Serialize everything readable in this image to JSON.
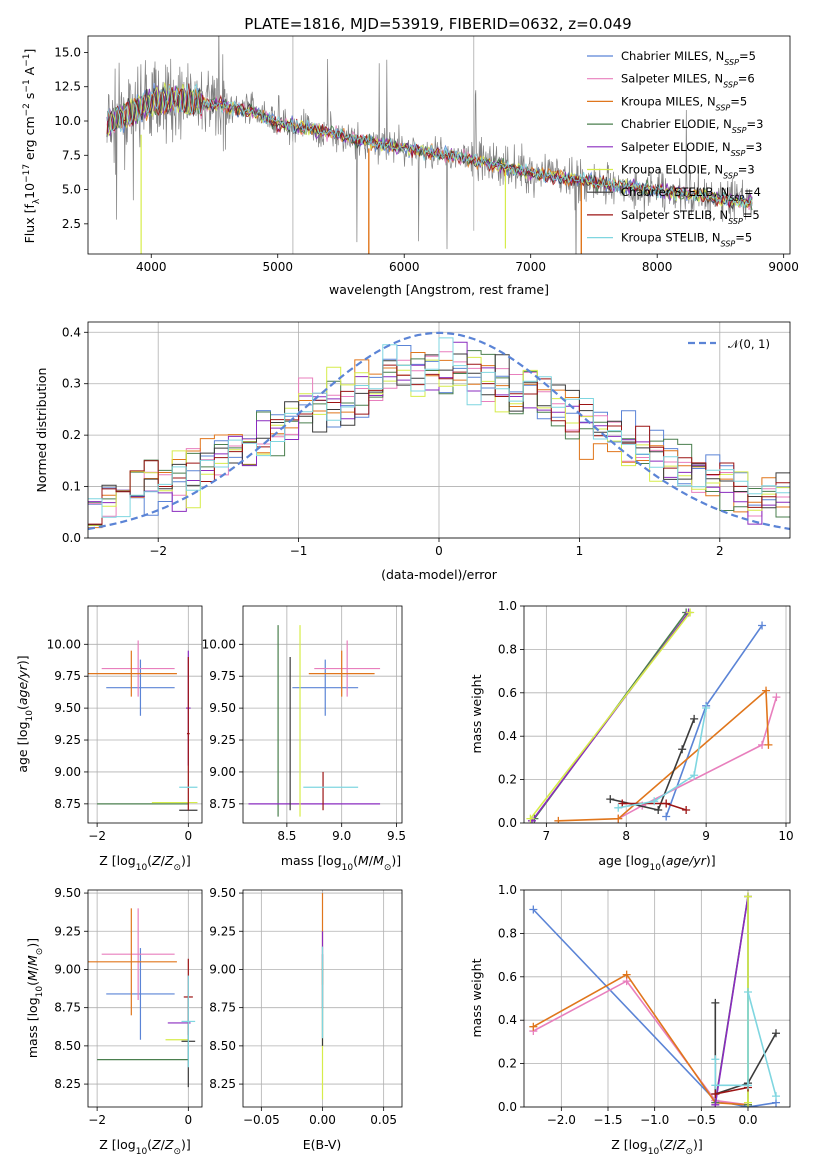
{
  "title": "PLATE=1816, MJD=53919, FIBERID=0632, z=0.049",
  "colors": {
    "Chabrier MILES": "#5b84d6",
    "Salpeter MILES": "#e87fbd",
    "Kroupa MILES": "#e0761c",
    "Chabrier ELODIE": "#4a7f4e",
    "Salpeter ELODIE": "#8a2bbf",
    "Kroupa ELODIE": "#d6ec4a",
    "Chabrier STELIB": "#3b3b3b",
    "Salpeter STELIB": "#9c1414",
    "Kroupa STELIB": "#7fd6e0",
    "data": "#808080",
    "normal": "#5b84d6"
  },
  "chart_data": [
    {
      "id": "spectrum",
      "type": "line",
      "xlabel": "wavelength [Angstrom, rest frame]",
      "ylabel": "Flux [f_λ 10^-17 erg cm^-2 s^-1 A^-1]",
      "xlim": [
        3500,
        9050
      ],
      "ylim": [
        0.3,
        16.2
      ],
      "xticks": [
        "4000",
        "5000",
        "6000",
        "7000",
        "8000",
        "9000"
      ],
      "yticks": [
        "2.5",
        "5.0",
        "7.5",
        "10.0",
        "12.5",
        "15.0"
      ],
      "legend_position": "upper right",
      "legend": [
        {
          "name": "Chabrier MILES",
          "n": "5"
        },
        {
          "name": "Salpeter MILES",
          "n": "6"
        },
        {
          "name": "Kroupa MILES",
          "n": "5"
        },
        {
          "name": "Chabrier ELODIE",
          "n": "3"
        },
        {
          "name": "Salpeter ELODIE",
          "n": "3"
        },
        {
          "name": "Kroupa ELODIE",
          "n": "3"
        },
        {
          "name": "Chabrier STELIB",
          "n": "4"
        },
        {
          "name": "Salpeter STELIB",
          "n": "5"
        },
        {
          "name": "Kroupa STELIB",
          "n": "5"
        }
      ],
      "continuum": {
        "x": [
          3650,
          3800,
          4000,
          4200,
          4500,
          4800,
          5000,
          5300,
          5600,
          6000,
          6300,
          6600,
          7000,
          7300,
          7600,
          8000,
          8300,
          8600,
          8750
        ],
        "y": [
          9.8,
          10.4,
          11.4,
          11.6,
          11.2,
          10.7,
          9.8,
          9.4,
          8.7,
          8.0,
          7.6,
          7.1,
          6.2,
          5.8,
          5.4,
          4.9,
          4.6,
          4.2,
          4.0
        ]
      }
    },
    {
      "id": "residuals",
      "type": "line",
      "xlabel": "(data-model)/error",
      "ylabel": "Normed distribution",
      "xlim": [
        -2.5,
        2.5
      ],
      "ylim": [
        0,
        0.42
      ],
      "xticks": [
        "−2",
        "−1",
        "0",
        "1",
        "2"
      ],
      "yticks": [
        "0.0",
        "0.1",
        "0.2",
        "0.3",
        "0.4"
      ],
      "legend": "𝒩(0, 1)",
      "bin_width": 0.1
    },
    {
      "id": "age_vs_Z",
      "type": "scatter",
      "xlabel": "Z [log10(Z/Z⊙)]",
      "ylabel": "age [log10(age/yr)]",
      "xlim": [
        -2.2,
        0.3
      ],
      "ylim": [
        8.6,
        10.3
      ],
      "xticks": [
        "−2",
        "0"
      ],
      "yticks": [
        "8.75",
        "9.00",
        "9.25",
        "9.50",
        "9.75",
        "10.00"
      ],
      "points": [
        {
          "model": "Chabrier MILES",
          "x": -1.05,
          "y": 9.66,
          "xe": 0.75,
          "ye": 0.22
        },
        {
          "model": "Salpeter MILES",
          "x": -1.1,
          "y": 9.81,
          "xe": 0.8,
          "ye": 0.22
        },
        {
          "model": "Kroupa MILES",
          "x": -1.25,
          "y": 9.77,
          "xe": 1.0,
          "ye": 0.18
        },
        {
          "model": "Chabrier ELODIE",
          "x": -1.0,
          "y": 8.75,
          "xe": 1.0,
          "ye": 0
        },
        {
          "model": "Salpeter ELODIE",
          "x": 0.0,
          "y": 9.5,
          "xe": 0.05,
          "ye": 0.45
        },
        {
          "model": "Kroupa ELODIE",
          "x": -0.3,
          "y": 8.76,
          "xe": 0.5,
          "ye": 0
        },
        {
          "model": "Chabrier STELIB",
          "x": 0.0,
          "y": 8.7,
          "xe": 0.2,
          "ye": 0
        },
        {
          "model": "Salpeter STELIB",
          "x": 0.0,
          "y": 9.3,
          "xe": 0.03,
          "ye": 0.6
        },
        {
          "model": "Kroupa STELIB",
          "x": 0.0,
          "y": 8.88,
          "xe": 0.2,
          "ye": 0
        }
      ]
    },
    {
      "id": "age_vs_mass",
      "type": "scatter",
      "xlabel": "mass [log10(M/M⊙)]",
      "xlim": [
        8.1,
        9.55
      ],
      "ylim": [
        8.6,
        10.3
      ],
      "xticks": [
        "8.5",
        "9.0",
        "9.5"
      ],
      "yticks": [
        "8.75",
        "9.00",
        "9.25",
        "9.50",
        "9.75",
        "10.00"
      ],
      "points": [
        {
          "model": "Chabrier MILES",
          "x": 8.85,
          "y": 9.66,
          "xe": 0.3,
          "ye": 0.22
        },
        {
          "model": "Salpeter MILES",
          "x": 9.05,
          "y": 9.81,
          "xe": 0.3,
          "ye": 0.22
        },
        {
          "model": "Kroupa MILES",
          "x": 9.0,
          "y": 9.77,
          "xe": 0.3,
          "ye": 0.18
        },
        {
          "model": "Chabrier ELODIE",
          "x": 8.42,
          "y": 9.4,
          "xe": 0.0,
          "ye": 0.75
        },
        {
          "model": "Salpeter ELODIE",
          "x": 8.75,
          "y": 8.75,
          "xe": 0.6,
          "ye": 0
        },
        {
          "model": "Kroupa ELODIE",
          "x": 8.62,
          "y": 9.4,
          "xe": 0.0,
          "ye": 0.75
        },
        {
          "model": "Chabrier STELIB",
          "x": 8.53,
          "y": 9.3,
          "xe": 0.0,
          "ye": 0.6
        },
        {
          "model": "Salpeter STELIB",
          "x": 8.83,
          "y": 8.85,
          "xe": 0.0,
          "ye": 0.15
        },
        {
          "model": "Kroupa STELIB",
          "x": 8.9,
          "y": 8.88,
          "xe": 0.25,
          "ye": 0
        }
      ]
    },
    {
      "id": "weight_vs_age",
      "type": "line",
      "xlabel": "age [log10(age/yr)]",
      "ylabel": "mass weight",
      "xlim": [
        6.72,
        10.05
      ],
      "ylim": [
        0,
        1
      ],
      "xticks": [
        "7",
        "8",
        "9",
        "10"
      ],
      "yticks": [
        "0.0",
        "0.2",
        "0.4",
        "0.6",
        "0.8",
        "1.0"
      ],
      "series": [
        {
          "model": "Chabrier MILES",
          "x": [
            8.5,
            9.0,
            9.7
          ],
          "y": [
            0.03,
            0.54,
            0.91
          ]
        },
        {
          "model": "Salpeter MILES",
          "x": [
            7.9,
            8.2,
            9.7,
            9.88
          ],
          "y": [
            0.02,
            0.08,
            0.36,
            0.58
          ]
        },
        {
          "model": "Kroupa MILES",
          "x": [
            7.15,
            7.9,
            9.75,
            9.78
          ],
          "y": [
            0.01,
            0.02,
            0.61,
            0.36
          ]
        },
        {
          "model": "Chabrier ELODIE",
          "x": [
            6.85,
            8.75
          ],
          "y": [
            0.02,
            0.97
          ]
        },
        {
          "model": "Salpeter ELODIE",
          "x": [
            6.82,
            8.78
          ],
          "y": [
            0.01,
            0.97
          ]
        },
        {
          "model": "Kroupa ELODIE",
          "x": [
            6.8,
            8.8
          ],
          "y": [
            0.02,
            0.97
          ]
        },
        {
          "model": "Chabrier STELIB",
          "x": [
            7.8,
            8.4,
            8.7,
            8.85
          ],
          "y": [
            0.11,
            0.06,
            0.34,
            0.48
          ]
        },
        {
          "model": "Salpeter STELIB",
          "x": [
            7.95,
            8.5,
            8.75
          ],
          "y": [
            0.09,
            0.09,
            0.06
          ]
        },
        {
          "model": "Kroupa STELIB",
          "x": [
            7.9,
            8.35,
            8.85,
            9.0
          ],
          "y": [
            0.07,
            0.1,
            0.22,
            0.53
          ]
        }
      ]
    },
    {
      "id": "mass_vs_Z",
      "type": "scatter",
      "xlabel": "Z [log10(Z/Z⊙)]",
      "ylabel": "mass [log10(M/M⊙)]",
      "xlim": [
        -2.2,
        0.3
      ],
      "ylim": [
        8.1,
        9.52
      ],
      "xticks": [
        "−2",
        "0"
      ],
      "yticks": [
        "8.25",
        "8.50",
        "8.75",
        "9.00",
        "9.25",
        "9.50"
      ],
      "points": [
        {
          "model": "Chabrier MILES",
          "x": -1.05,
          "y": 8.84,
          "xe": 0.75,
          "ye": 0.3
        },
        {
          "model": "Salpeter MILES",
          "x": -1.1,
          "y": 9.1,
          "xe": 0.8,
          "ye": 0.3
        },
        {
          "model": "Kroupa MILES",
          "x": -1.25,
          "y": 9.05,
          "xe": 1.0,
          "ye": 0.35
        },
        {
          "model": "Chabrier ELODIE",
          "x": -1.0,
          "y": 8.41,
          "xe": 1.0,
          "ye": 0
        },
        {
          "model": "Salpeter ELODIE",
          "x": -0.2,
          "y": 8.65,
          "xe": 0.25,
          "ye": 0
        },
        {
          "model": "Kroupa ELODIE",
          "x": -0.25,
          "y": 8.54,
          "xe": 0.25,
          "ye": 0
        },
        {
          "model": "Chabrier STELIB",
          "x": 0.0,
          "y": 8.53,
          "xe": 0.15,
          "ye": 0.3
        },
        {
          "model": "Salpeter STELIB",
          "x": 0.0,
          "y": 8.82,
          "xe": 0.1,
          "ye": 0.25
        },
        {
          "model": "Kroupa STELIB",
          "x": 0.0,
          "y": 8.66,
          "xe": 0.15,
          "ye": 0.3
        }
      ]
    },
    {
      "id": "mass_vs_ebv",
      "type": "scatter",
      "xlabel": "E(B-V)",
      "xlim": [
        -0.065,
        0.065
      ],
      "ylim": [
        8.1,
        9.52
      ],
      "xticks": [
        "−0.05",
        "0.00",
        "0.05"
      ],
      "yticks": [
        "8.25",
        "8.50",
        "8.75",
        "9.00",
        "9.25",
        "9.50"
      ],
      "points": [
        {
          "model": "Kroupa MILES",
          "x": 0.0,
          "y": 9.2,
          "xe": 0,
          "ye": 0.3
        },
        {
          "model": "Salpeter ELODIE",
          "x": 0.0,
          "y": 9.0,
          "xe": 0,
          "ye": 0.25
        },
        {
          "model": "Kroupa ELODIE",
          "x": 0.0,
          "y": 8.6,
          "xe": 0,
          "ye": 0.45
        },
        {
          "model": "Chabrier STELIB",
          "x": 0.0,
          "y": 8.8,
          "xe": 0,
          "ye": 0.3
        },
        {
          "model": "Kroupa STELIB",
          "x": 0.0,
          "y": 8.85,
          "xe": 0,
          "ye": 0.3
        }
      ]
    },
    {
      "id": "weight_vs_Z",
      "type": "line",
      "xlabel": "Z [log10(Z/Z⊙)]",
      "ylabel": "mass weight",
      "xlim": [
        -2.4,
        0.45
      ],
      "ylim": [
        0,
        1
      ],
      "xticks": [
        "−2.0",
        "−1.5",
        "−1.0",
        "−0.5",
        "0.0"
      ],
      "yticks": [
        "0.0",
        "0.2",
        "0.4",
        "0.6",
        "0.8",
        "1.0"
      ],
      "series": [
        {
          "model": "Chabrier MILES",
          "x": [
            -2.3,
            -0.35,
            0.0,
            0.3
          ],
          "y": [
            0.91,
            0.03,
            0.0,
            0.02
          ]
        },
        {
          "model": "Salpeter MILES",
          "x": [
            -2.3,
            -1.3,
            -0.35,
            0.0
          ],
          "y": [
            0.35,
            0.58,
            0.03,
            0.01
          ]
        },
        {
          "model": "Kroupa MILES",
          "x": [
            -2.3,
            -1.3,
            -0.35,
            0.0
          ],
          "y": [
            0.37,
            0.61,
            0.02,
            0.01
          ]
        },
        {
          "model": "Chabrier ELODIE",
          "x": [
            -0.35,
            0.0,
            0.0
          ],
          "y": [
            0.02,
            0.97,
            0.01
          ]
        },
        {
          "model": "Salpeter ELODIE",
          "x": [
            -0.35,
            0.0
          ],
          "y": [
            0.01,
            0.97
          ]
        },
        {
          "model": "Kroupa ELODIE",
          "x": [
            0.0,
            0.0
          ],
          "y": [
            0.02,
            0.97
          ]
        },
        {
          "model": "Chabrier STELIB",
          "x": [
            -0.35,
            -0.35,
            0.0,
            0.3
          ],
          "y": [
            0.48,
            0.06,
            0.11,
            0.34
          ]
        },
        {
          "model": "Salpeter STELIB",
          "x": [
            -0.35,
            0.0
          ],
          "y": [
            0.06,
            0.09
          ]
        },
        {
          "model": "Kroupa STELIB",
          "x": [
            -0.35,
            -0.35,
            0.0,
            0.0,
            0.3
          ],
          "y": [
            0.22,
            0.1,
            0.1,
            0.53,
            0.05
          ]
        }
      ]
    }
  ]
}
